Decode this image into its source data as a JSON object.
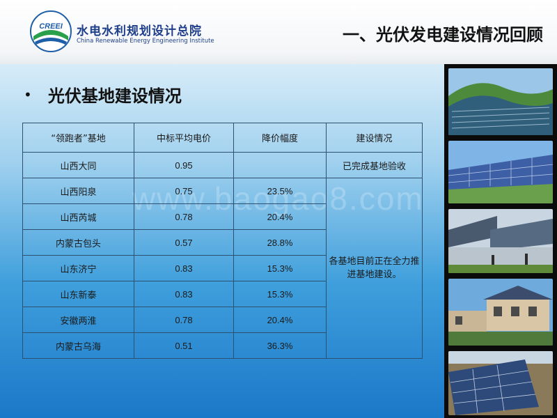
{
  "header": {
    "logo_text": "CREEI",
    "org_cn": "水电水利规划设计总院",
    "org_en": "China Renewable Energy Engineering Institute",
    "section_title": "一、光伏发电建设情况回顾"
  },
  "bullet": {
    "symbol": "•",
    "text": "光伏基地建设情况"
  },
  "table": {
    "headers": [
      "“领跑者”基地",
      "中标平均电价",
      "降价幅度",
      "建设情况"
    ],
    "rows": [
      {
        "base": "山西大同",
        "price": "0.95",
        "cut": "",
        "status": "已完成基地验收"
      },
      {
        "base": "山西阳泉",
        "price": "0.75",
        "cut": "23.5%"
      },
      {
        "base": "山西芮城",
        "price": "0.78",
        "cut": "20.4%"
      },
      {
        "base": "内蒙古包头",
        "price": "0.57",
        "cut": "28.8%"
      },
      {
        "base": "山东济宁",
        "price": "0.83",
        "cut": "15.3%"
      },
      {
        "base": "山东新泰",
        "price": "0.83",
        "cut": "15.3%"
      },
      {
        "base": "安徽两淮",
        "price": "0.78",
        "cut": "20.4%"
      },
      {
        "base": "内蒙古乌海",
        "price": "0.51",
        "cut": "36.3%"
      }
    ],
    "merged_status": "各基地目前正在全力推进基地建设。"
  },
  "watermark": "www.baogao8.com",
  "photos": [
    "solar-hillside-photo",
    "solar-array-photo",
    "solar-greenhouse-photo",
    "solar-rooftop-house-photo",
    "solar-panel-closeup-photo"
  ],
  "colors": {
    "logo_blue": "#1f5fa8",
    "logo_green": "#2aa04a",
    "org_text": "#1f3f8a",
    "table_border": "#2e5070",
    "bg_top": "#d7ecf8",
    "bg_bottom": "#1a78c8"
  }
}
